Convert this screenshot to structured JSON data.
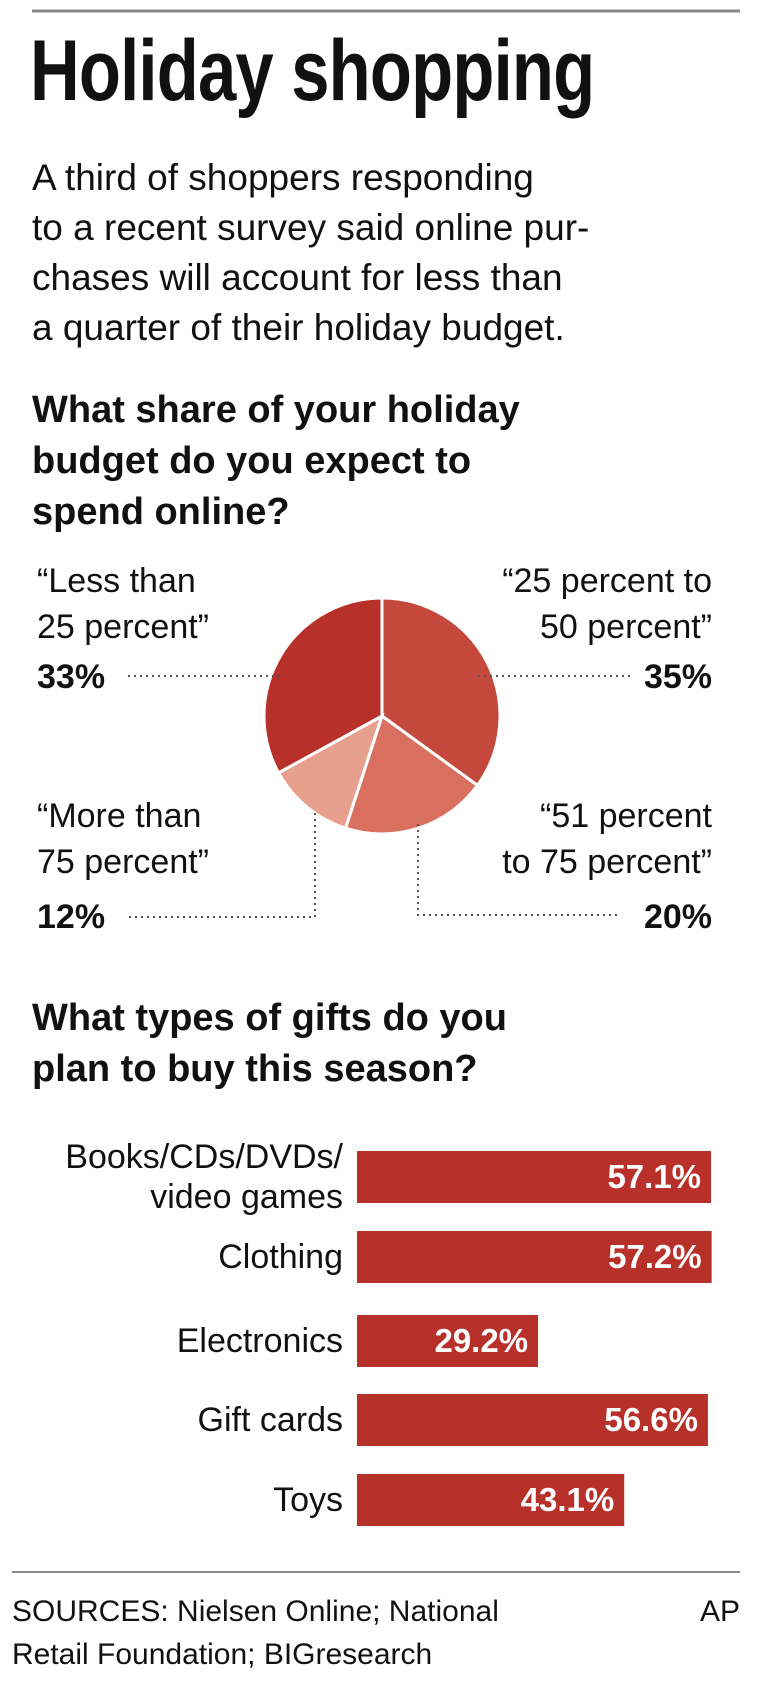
{
  "title": "Holiday shopping",
  "description": "A third of shoppers responding\nto a recent survey said online pur-\nchases will account for less than\na quarter of their holiday budget.",
  "chart_data": [
    {
      "type": "pie",
      "title": "What share of your holiday\nbudget do you expect to\nspend online?",
      "categories": [
        "“25 percent to\n50 percent”",
        "“51 percent\nto 75 percent”",
        "“More than\n75 percent”",
        "“Less than\n25 percent”"
      ],
      "values": [
        35,
        20,
        12,
        33
      ],
      "value_labels": [
        "35%",
        "20%",
        "12%",
        "33%"
      ],
      "colors": [
        "#c4483c",
        "#d9705f",
        "#e8a08e",
        "#b8302a"
      ]
    },
    {
      "type": "bar",
      "title": "What types of gifts do you\nplan to buy this season?",
      "categories": [
        "Books/CDs/DVDs/\nvideo games",
        "Clothing",
        "Electronics",
        "Gift cards",
        "Toys"
      ],
      "values": [
        57.1,
        57.2,
        29.2,
        56.6,
        43.1
      ],
      "value_labels": [
        "57.1%",
        "57.2%",
        "29.2%",
        "56.6%",
        "43.1%"
      ],
      "color": "#b8302a"
    }
  ],
  "footer": {
    "sources": "SOURCES: Nielsen Online; National\nRetail Foundation; BIGresearch",
    "credit": "AP"
  }
}
